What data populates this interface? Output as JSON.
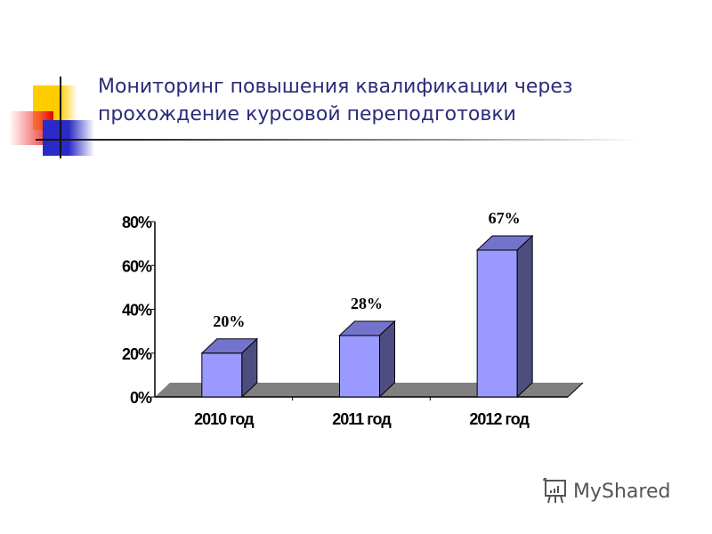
{
  "slide": {
    "title_lines": [
      "Мониторинг повышения квалификации через",
      "прохождение курсовой переподготовки"
    ],
    "watermark": "MyShared"
  },
  "colors": {
    "title": "#2b2b7a",
    "bar_front": "#9999ff",
    "bar_top": "#7373cc",
    "bar_side": "#4d4d80",
    "floor": "#808080"
  },
  "chart_data": {
    "type": "bar",
    "title": "",
    "categories": [
      "2010 год",
      "2011 год",
      "2012 год"
    ],
    "values": [
      20,
      28,
      67
    ],
    "data_labels": [
      "20%",
      "28%",
      "67%"
    ],
    "xlabel": "",
    "ylabel": "",
    "ylim": [
      0,
      80
    ],
    "y_ticks": [
      "0%",
      "20%",
      "40%",
      "60%",
      "80%"
    ],
    "grid": false,
    "legend": null,
    "style": "3d-column"
  }
}
